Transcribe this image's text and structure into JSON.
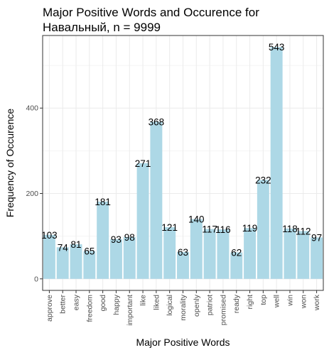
{
  "chart_data": {
    "type": "bar",
    "title_lines": [
      "Major Positive Words and Occurence for",
      "Навальный, n = 9999"
    ],
    "xlabel": "Major Positive Words",
    "ylabel": "Frequency of Occurence",
    "categories": [
      "approve",
      "better",
      "easy",
      "freedom",
      "good",
      "happy",
      "important",
      "like",
      "liked",
      "logical",
      "morality",
      "openly",
      "patriot",
      "promised",
      "ready",
      "right",
      "top",
      "well",
      "win",
      "won",
      "work"
    ],
    "values": [
      103,
      74,
      81,
      65,
      181,
      93,
      98,
      271,
      368,
      121,
      63,
      140,
      117,
      116,
      62,
      119,
      232,
      543,
      118,
      112,
      97
    ],
    "data_labels": [
      "103",
      "74",
      "81",
      "65",
      "181",
      "93",
      "98",
      "271",
      "368",
      "121",
      "63",
      "140",
      "117",
      "116",
      "62",
      "119",
      "232",
      "543",
      "118",
      "112",
      "97"
    ],
    "yticks": [
      0,
      200,
      400
    ],
    "ytick_labels": [
      "0",
      "200",
      "400"
    ],
    "ylim": [
      -27,
      570
    ],
    "grid": true,
    "bar_color": "#add8e6",
    "panel_border_color": "#333333",
    "grid_color": "#ebebeb"
  }
}
